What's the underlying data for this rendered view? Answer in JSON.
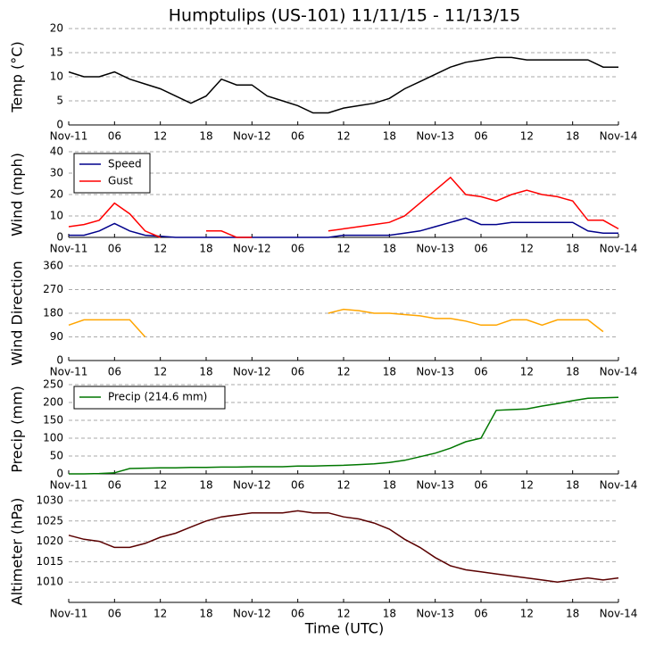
{
  "chart_data": [
    {
      "type": "line",
      "title": "Humptulips (US-101) 11/11/15 - 11/13/15",
      "ylabel": "Temp (°C)",
      "x": [
        0,
        2,
        4,
        6,
        8,
        10,
        12,
        14,
        16,
        18,
        20,
        22,
        24,
        26,
        28,
        30,
        32,
        34,
        36,
        38,
        40,
        42,
        44,
        46,
        48,
        50,
        52,
        54,
        56,
        58,
        60,
        62,
        64,
        66,
        68,
        70,
        72
      ],
      "series": [
        {
          "name": "Temp",
          "color": "#000000",
          "values": [
            11,
            10,
            10,
            11,
            9.5,
            8.5,
            7.5,
            6,
            4.5,
            6,
            9.5,
            8.3,
            8.3,
            6,
            5,
            4,
            2.5,
            2.5,
            3.5,
            4,
            4.5,
            5.5,
            7.5,
            9,
            10.5,
            12,
            13,
            13.5,
            14,
            14,
            13.5,
            13.5,
            13.5,
            13.5,
            13.5,
            12,
            12
          ]
        }
      ],
      "xlim": [
        0,
        72
      ],
      "xticks": [
        {
          "value": 0,
          "label": "Nov-11"
        },
        {
          "value": 6,
          "label": "06"
        },
        {
          "value": 12,
          "label": "12"
        },
        {
          "value": 18,
          "label": "18"
        },
        {
          "value": 24,
          "label": "Nov-12"
        },
        {
          "value": 30,
          "label": "06"
        },
        {
          "value": 36,
          "label": "12"
        },
        {
          "value": 42,
          "label": "18"
        },
        {
          "value": 48,
          "label": "Nov-13"
        },
        {
          "value": 54,
          "label": "06"
        },
        {
          "value": 60,
          "label": "12"
        },
        {
          "value": 66,
          "label": "18"
        },
        {
          "value": 72,
          "label": "Nov-14"
        }
      ],
      "ylim": [
        0,
        20
      ],
      "yticks": [
        0,
        5,
        10,
        15,
        20
      ],
      "grid": true
    },
    {
      "type": "line",
      "ylabel": "Wind (mph)",
      "legend": "upper left",
      "x": [
        0,
        2,
        4,
        6,
        8,
        10,
        12,
        14,
        16,
        18,
        20,
        22,
        24,
        26,
        28,
        30,
        32,
        34,
        36,
        38,
        40,
        42,
        44,
        46,
        48,
        50,
        52,
        54,
        56,
        58,
        60,
        62,
        64,
        66,
        68,
        70,
        72
      ],
      "series": [
        {
          "name": "Speed",
          "color": "#00008b",
          "values": [
            1,
            1,
            3,
            6.5,
            3,
            1,
            0.5,
            0,
            0,
            0,
            0,
            0,
            0,
            0,
            0,
            0,
            0,
            0,
            1,
            1,
            1,
            1,
            2,
            3,
            5,
            7,
            9,
            6,
            6,
            7,
            7,
            7,
            7,
            7,
            3,
            2,
            2
          ]
        },
        {
          "name": "Gust",
          "color": "#ff0000",
          "values": [
            5,
            6,
            8,
            16,
            11,
            3,
            0,
            null,
            null,
            3,
            3,
            0,
            0,
            null,
            null,
            null,
            null,
            3,
            4,
            5,
            6,
            7,
            10,
            16,
            22,
            28,
            20,
            19,
            17,
            20,
            22,
            20,
            19,
            17,
            8,
            8,
            4
          ]
        }
      ],
      "xlim": [
        0,
        72
      ],
      "xticks": [
        {
          "value": 0,
          "label": "Nov-11"
        },
        {
          "value": 6,
          "label": "06"
        },
        {
          "value": 12,
          "label": "12"
        },
        {
          "value": 18,
          "label": "18"
        },
        {
          "value": 24,
          "label": "Nov-12"
        },
        {
          "value": 30,
          "label": "06"
        },
        {
          "value": 36,
          "label": "12"
        },
        {
          "value": 42,
          "label": "18"
        },
        {
          "value": 48,
          "label": "Nov-13"
        },
        {
          "value": 54,
          "label": "06"
        },
        {
          "value": 60,
          "label": "12"
        },
        {
          "value": 66,
          "label": "18"
        },
        {
          "value": 72,
          "label": "Nov-14"
        }
      ],
      "ylim": [
        0,
        40
      ],
      "yticks": [
        0,
        10,
        20,
        30,
        40
      ],
      "grid": true
    },
    {
      "type": "line",
      "ylabel": "Wind Direction",
      "x": [
        0,
        2,
        4,
        6,
        8,
        10,
        12,
        14,
        16,
        18,
        20,
        22,
        24,
        26,
        28,
        30,
        32,
        34,
        36,
        38,
        40,
        42,
        44,
        46,
        48,
        50,
        52,
        54,
        56,
        58,
        60,
        62,
        64,
        66,
        68,
        70,
        72
      ],
      "series": [
        {
          "name": "Direction",
          "color": "#ffa500",
          "values": [
            135,
            155,
            155,
            155,
            155,
            90,
            null,
            null,
            null,
            null,
            null,
            null,
            null,
            null,
            null,
            null,
            null,
            180,
            195,
            190,
            180,
            180,
            175,
            170,
            160,
            160,
            150,
            135,
            135,
            155,
            155,
            135,
            155,
            155,
            155,
            110,
            null
          ]
        }
      ],
      "xlim": [
        0,
        72
      ],
      "xticks": [
        {
          "value": 0,
          "label": "Nov-11"
        },
        {
          "value": 6,
          "label": "06"
        },
        {
          "value": 12,
          "label": "12"
        },
        {
          "value": 18,
          "label": "18"
        },
        {
          "value": 24,
          "label": "Nov-12"
        },
        {
          "value": 30,
          "label": "06"
        },
        {
          "value": 36,
          "label": "12"
        },
        {
          "value": 42,
          "label": "18"
        },
        {
          "value": 48,
          "label": "Nov-13"
        },
        {
          "value": 54,
          "label": "06"
        },
        {
          "value": 60,
          "label": "12"
        },
        {
          "value": 66,
          "label": "18"
        },
        {
          "value": 72,
          "label": "Nov-14"
        }
      ],
      "ylim": [
        0,
        360
      ],
      "yticks": [
        0,
        90,
        180,
        270,
        360
      ],
      "grid": true
    },
    {
      "type": "line",
      "ylabel": "Precip (mm)",
      "legend": "upper left",
      "x": [
        0,
        2,
        4,
        6,
        8,
        10,
        12,
        14,
        16,
        18,
        20,
        22,
        24,
        26,
        28,
        30,
        32,
        34,
        36,
        38,
        40,
        42,
        44,
        46,
        48,
        50,
        52,
        54,
        56,
        58,
        60,
        62,
        64,
        66,
        68,
        70,
        72
      ],
      "series": [
        {
          "name": "Precip (214.6 mm)",
          "color": "#007700",
          "values": [
            0,
            0,
            1,
            3,
            15,
            16,
            17,
            17,
            18,
            18,
            19,
            19,
            20,
            20,
            20,
            22,
            22,
            23,
            24,
            26,
            28,
            32,
            38,
            48,
            58,
            72,
            90,
            100,
            178,
            180,
            182,
            190,
            197,
            205,
            212,
            213,
            214.6
          ]
        }
      ],
      "xlim": [
        0,
        72
      ],
      "xticks": [
        {
          "value": 0,
          "label": "Nov-11"
        },
        {
          "value": 6,
          "label": "06"
        },
        {
          "value": 12,
          "label": "12"
        },
        {
          "value": 18,
          "label": "18"
        },
        {
          "value": 24,
          "label": "Nov-12"
        },
        {
          "value": 30,
          "label": "06"
        },
        {
          "value": 36,
          "label": "12"
        },
        {
          "value": 42,
          "label": "18"
        },
        {
          "value": 48,
          "label": "Nov-13"
        },
        {
          "value": 54,
          "label": "06"
        },
        {
          "value": 60,
          "label": "12"
        },
        {
          "value": 66,
          "label": "18"
        },
        {
          "value": 72,
          "label": "Nov-14"
        }
      ],
      "ylim": [
        0,
        250
      ],
      "yticks": [
        0,
        50,
        100,
        150,
        200,
        250
      ],
      "grid": true
    },
    {
      "type": "line",
      "ylabel": "Altimeter (hPa)",
      "xlabel": "Time (UTC)",
      "x": [
        0,
        2,
        4,
        6,
        8,
        10,
        12,
        14,
        16,
        18,
        20,
        22,
        24,
        26,
        28,
        30,
        32,
        34,
        36,
        38,
        40,
        42,
        44,
        46,
        48,
        50,
        52,
        54,
        56,
        58,
        60,
        62,
        64,
        66,
        68,
        70,
        72
      ],
      "series": [
        {
          "name": "Altimeter",
          "color": "#5a0000",
          "values": [
            1021.5,
            1020.5,
            1020,
            1018.5,
            1018.5,
            1019.5,
            1021,
            1022,
            1023.5,
            1025,
            1026,
            1026.5,
            1027,
            1027,
            1027,
            1027.5,
            1027,
            1027,
            1026,
            1025.5,
            1024.5,
            1023,
            1020.5,
            1018.5,
            1016,
            1014,
            1013,
            1012.5,
            1012,
            1011.5,
            1011,
            1010.5,
            1010,
            1010.5,
            1011,
            1010.5,
            1011
          ]
        }
      ],
      "xlim": [
        0,
        72
      ],
      "xticks": [
        {
          "value": 0,
          "label": "Nov-11"
        },
        {
          "value": 6,
          "label": "06"
        },
        {
          "value": 12,
          "label": "12"
        },
        {
          "value": 18,
          "label": "18"
        },
        {
          "value": 24,
          "label": "Nov-12"
        },
        {
          "value": 30,
          "label": "06"
        },
        {
          "value": 36,
          "label": "12"
        },
        {
          "value": 42,
          "label": "18"
        },
        {
          "value": 48,
          "label": "Nov-13"
        },
        {
          "value": 54,
          "label": "06"
        },
        {
          "value": 60,
          "label": "12"
        },
        {
          "value": 66,
          "label": "18"
        },
        {
          "value": 72,
          "label": "Nov-14"
        }
      ],
      "ylim": [
        1005,
        1030
      ],
      "yticks": [
        1010,
        1015,
        1020,
        1025,
        1030
      ],
      "grid": true
    }
  ]
}
